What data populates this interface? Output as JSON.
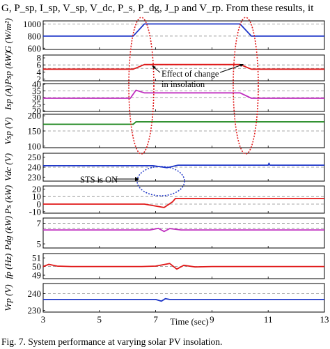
{
  "header_text": "G, P_sp, I_sp, V_sp, V_dc, P_s, P_dg, J_p and V_rp.  From  these  results,  it",
  "caption": "Fig. 7.   System performance at varying solar PV insolation.",
  "annotations": {
    "insolation": "Effect of change in insolation",
    "sts": "STS is ON"
  },
  "chart_data": [
    {
      "type": "line",
      "ylabel": "G (W/m²)",
      "yticks": [
        600,
        800,
        1000
      ],
      "ylim": [
        580,
        1050
      ],
      "dashed": [
        800,
        1000
      ],
      "color": "#1f37c8",
      "x": [
        3,
        6.2,
        6.6,
        10,
        10.4,
        13
      ],
      "y": [
        800,
        800,
        1000,
        1000,
        800,
        800
      ]
    },
    {
      "type": "line",
      "ylabel": "Psp (kW)",
      "yticks": [
        2,
        4,
        6,
        8
      ],
      "ylim": [
        1.5,
        8.8
      ],
      "dashed": [
        5,
        6
      ],
      "color": "#e01818",
      "x": [
        3,
        6.2,
        6.6,
        10,
        10.4,
        13
      ],
      "y": [
        4.8,
        4.8,
        6.1,
        6.1,
        4.8,
        4.8
      ]
    },
    {
      "type": "line",
      "ylabel": "Isp (A)",
      "yticks": [
        20,
        25,
        30,
        35,
        40
      ],
      "ylim": [
        19.5,
        40.5
      ],
      "dashed": [
        30,
        35
      ],
      "color": "#c030c0",
      "x": [
        3,
        6.1,
        6.3,
        6.6,
        10,
        10.4,
        13
      ],
      "y": [
        29.5,
        29.5,
        35.5,
        33.5,
        33.5,
        29.5,
        29.5
      ]
    },
    {
      "type": "line",
      "ylabel": "Vsp (V)",
      "yticks": [
        100,
        150,
        200
      ],
      "ylim": [
        95,
        205
      ],
      "dashed": [
        150
      ],
      "color": "#208820",
      "x": [
        3,
        6.2,
        6.3,
        13
      ],
      "y": [
        172,
        172,
        180,
        180
      ]
    },
    {
      "type": "line",
      "ylabel": "Vdc (V)",
      "yticks": [
        230,
        240,
        250
      ],
      "ylim": [
        226,
        254
      ],
      "dashed": [
        240
      ],
      "color": "#1f37c8",
      "x": [
        3,
        6.9,
        7.4,
        7.8,
        11,
        11.03,
        11.06,
        13
      ],
      "y": [
        241.5,
        241.5,
        239.5,
        242,
        242,
        244,
        242,
        242
      ]
    },
    {
      "type": "line",
      "ylabel": "Ps (kW)",
      "yticks": [
        -10,
        0,
        10,
        20
      ],
      "ylim": [
        -12,
        24
      ],
      "dashed": [
        0,
        10
      ],
      "color": "#e01818",
      "x": [
        3,
        6.6,
        7.3,
        7.6,
        7.7,
        13
      ],
      "y": [
        0,
        0,
        -4.5,
        3,
        7.5,
        7.5
      ]
    },
    {
      "type": "line",
      "ylabel": "Pdg (kW)",
      "yticks": [
        5,
        7
      ],
      "ylim": [
        4.6,
        7.5
      ],
      "dashed": [
        7,
        6.5
      ],
      "color": "#c030c0",
      "x": [
        3,
        6.8,
        7.1,
        7.3,
        7.5,
        7.9,
        13
      ],
      "y": [
        6.35,
        6.35,
        6.5,
        6.2,
        6.48,
        6.35,
        6.35
      ]
    },
    {
      "type": "line",
      "ylabel": "fp (Hz)",
      "yticks": [
        49,
        50,
        51
      ],
      "ylim": [
        48.6,
        51.5
      ],
      "dashed": [
        50
      ],
      "color": "#e01818",
      "x": [
        3,
        3.2,
        3.5,
        4,
        6.5,
        7.0,
        7.5,
        7.75,
        8.0,
        8.4,
        9,
        13
      ],
      "y": [
        50,
        50.25,
        50.05,
        50,
        50,
        50.05,
        50.35,
        49.7,
        50.15,
        49.95,
        50,
        50
      ]
    },
    {
      "type": "line",
      "ylabel": "Vrp (V)",
      "yticks": [
        230,
        240
      ],
      "ylim": [
        229,
        246
      ],
      "dashed": [
        240
      ],
      "color": "#1f37c8",
      "x": [
        3,
        7.0,
        7.2,
        7.35,
        7.5,
        13
      ],
      "y": [
        236.5,
        236.5,
        235.5,
        237,
        236.5,
        236.5
      ]
    }
  ],
  "x_axis": {
    "label": "Time (sec)",
    "ticks": [
      3,
      5,
      7,
      9,
      11,
      13
    ],
    "tick_labels": [
      "3",
      "5",
      "7",
      "9",
      "11",
      "13"
    ],
    "range": [
      3,
      13
    ]
  }
}
